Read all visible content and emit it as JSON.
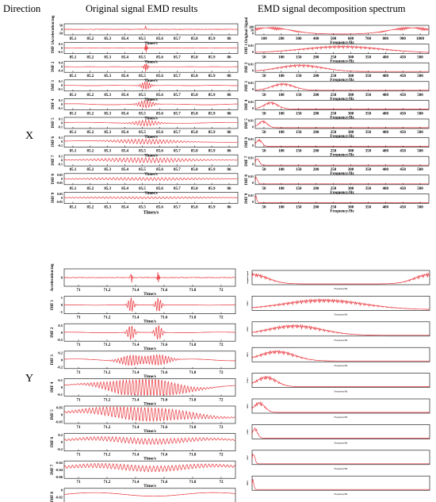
{
  "headers": {
    "direction": "Direction",
    "emd_results": "Original signal EMD results",
    "spectrum": "EMD signal decomposition spectrum"
  },
  "directions": {
    "x": "X",
    "y": "Y"
  },
  "colors": {
    "signal": "#e8333a",
    "axis": "#000000",
    "text": "#000000"
  },
  "chart_data": [
    {
      "type": "line",
      "id": "x-time",
      "direction": "X",
      "xlabel": "Times/s",
      "x_ticks": [
        "85.1",
        "85.2",
        "85.3",
        "85.4",
        "85.5",
        "85.6",
        "85.7",
        "85.8",
        "85.9",
        "86"
      ],
      "xlim": [
        85.05,
        86.0
      ],
      "series": [
        {
          "name": "Acceleration/mg",
          "y_ticks": [
            "50",
            "0",
            "-50"
          ],
          "ylim": [
            -60,
            60
          ],
          "freqs": [
            0
          ],
          "burst_amp": 1.0,
          "burst_width": 0.004,
          "noise": 0.05
        },
        {
          "name": "IMF 1",
          "y_ticks": [
            "0.5",
            "0",
            "-0.5"
          ],
          "ylim": [
            -0.6,
            0.6
          ],
          "freqs": [
            250
          ],
          "burst_amp": 1.0,
          "burst_width": 0.008,
          "noise": 0.04
        },
        {
          "name": "IMF 2",
          "y_ticks": [
            "0.4",
            "0",
            "-0.4"
          ],
          "ylim": [
            -0.5,
            0.5
          ],
          "freqs": [
            140
          ],
          "burst_amp": 1.0,
          "burst_width": 0.012,
          "noise": 0.04
        },
        {
          "name": "IMF 3",
          "y_ticks": [
            "0.1",
            "0",
            "-0.1"
          ],
          "ylim": [
            -0.15,
            0.15
          ],
          "freqs": [
            70
          ],
          "burst_amp": 0.9,
          "burst_width": 0.03,
          "noise": 0.06
        },
        {
          "name": "IMF 4",
          "y_ticks": [
            "0.1",
            "0",
            "-0.1"
          ],
          "ylim": [
            -0.15,
            0.15
          ],
          "freqs": [
            38
          ],
          "burst_amp": 0.8,
          "burst_width": 0.05,
          "noise": 0.2
        },
        {
          "name": "IMF 5",
          "y_ticks": [
            "0.1",
            "0",
            "-0.1"
          ],
          "ylim": [
            -0.15,
            0.15
          ],
          "freqs": [
            20
          ],
          "burst_amp": 0.6,
          "burst_width": 0.08,
          "noise": 0.25
        },
        {
          "name": "IMF 6",
          "y_ticks": [
            "0.1",
            "0",
            "-0.1"
          ],
          "ylim": [
            -0.15,
            0.15
          ],
          "freqs": [
            9
          ],
          "burst_amp": 0.5,
          "burst_width": 0.2,
          "noise": 0.3
        },
        {
          "name": "IMF 7",
          "y_ticks": [
            "0.1",
            "0",
            "-0.1"
          ],
          "ylim": [
            -0.15,
            0.15
          ],
          "freqs": [
            4
          ],
          "burst_amp": 0.5,
          "burst_width": 0.3,
          "noise": 0.2
        },
        {
          "name": "IMF 8",
          "y_ticks": [
            "0.05",
            "0",
            "-0.05"
          ],
          "ylim": [
            -0.07,
            0.07
          ],
          "freqs": [
            2
          ],
          "burst_amp": 0.3,
          "burst_width": 0.4,
          "noise": 0.1
        },
        {
          "name": "IMF 9",
          "y_ticks": [
            "0.05",
            "0",
            "-0.05"
          ],
          "ylim": [
            -0.07,
            0.07
          ],
          "freqs": [
            0.8
          ],
          "burst_amp": 0.2,
          "burst_width": 0.5,
          "noise": 0.05
        }
      ]
    },
    {
      "type": "line",
      "id": "x-spectrum",
      "direction": "X",
      "xlabel": "Frequency/Hz",
      "x_ticks_main": [
        "100",
        "200",
        "300",
        "400",
        "500",
        "600",
        "700",
        "800",
        "900",
        "1000"
      ],
      "x_ticks": [
        "50",
        "100",
        "150",
        "200",
        "250",
        "300",
        "350",
        "400",
        "450",
        "500"
      ],
      "series": [
        {
          "name": "Original Signal",
          "y_ticks": [
            "100",
            "50",
            "0"
          ],
          "ylim": [
            0,
            120
          ],
          "peak_hz": [
            80,
            900
          ],
          "spread": 180
        },
        {
          "name": "IMF 1",
          "y_ticks": [
            "0.01",
            "0"
          ],
          "ylim": [
            0,
            0.012
          ],
          "peak_hz": [
            250
          ],
          "spread": 160
        },
        {
          "name": "IMF 2",
          "y_ticks": [
            "0.01",
            "0"
          ],
          "ylim": [
            0,
            0.012
          ],
          "peak_hz": [
            130
          ],
          "spread": 90
        },
        {
          "name": "IMF 3",
          "y_ticks": [
            "0.01",
            "0"
          ],
          "ylim": [
            0,
            0.012
          ],
          "peak_hz": [
            80
          ],
          "spread": 45
        },
        {
          "name": "IMF 4",
          "y_ticks": [
            "0.01",
            "0"
          ],
          "ylim": [
            0,
            0.012
          ],
          "peak_hz": [
            45
          ],
          "spread": 28
        },
        {
          "name": "IMF 5",
          "y_ticks": [
            "0.01",
            "0"
          ],
          "ylim": [
            0,
            0.012
          ],
          "peak_hz": [
            22
          ],
          "spread": 18
        },
        {
          "name": "IMF 6",
          "y_ticks": [
            "0.01",
            "0"
          ],
          "ylim": [
            0,
            0.012
          ],
          "peak_hz": [
            11
          ],
          "spread": 12
        },
        {
          "name": "IMF 7",
          "y_ticks": [
            "0.01",
            "0"
          ],
          "ylim": [
            0,
            0.012
          ],
          "peak_hz": [
            6
          ],
          "spread": 8
        },
        {
          "name": "IMF 8",
          "y_ticks": [
            "0.01",
            "0"
          ],
          "ylim": [
            0,
            0.012
          ],
          "peak_hz": [
            3
          ],
          "spread": 5
        },
        {
          "name": "IMF 9",
          "y_ticks": [
            "0.01",
            "0"
          ],
          "ylim": [
            0,
            0.012
          ],
          "peak_hz": [
            1.5
          ],
          "spread": 4
        }
      ]
    },
    {
      "type": "line",
      "id": "y-time",
      "direction": "Y",
      "xlabel": "Time/s",
      "x_ticks": [
        "71",
        "71.2",
        "71.4",
        "71.6",
        "71.8",
        "72"
      ],
      "xlim": [
        71.0,
        72.0
      ],
      "series": [
        {
          "name": "Acceleration/mg",
          "y_ticks": [
            "0"
          ],
          "ylim": [
            -1,
            1
          ],
          "freqs": [
            0
          ],
          "burst_amp": 1.0,
          "burst_width": 0.006,
          "noise": 0.04
        },
        {
          "name": "IMF 1",
          "y_ticks": [
            "1",
            "0",
            "-1"
          ],
          "ylim": [
            -1.3,
            1.3
          ],
          "freqs": [
            60
          ],
          "burst_amp": 1.0,
          "burst_width": 0.02,
          "noise": 0.03
        },
        {
          "name": "IMF 2",
          "y_ticks": [
            "0.5",
            "0",
            "-0.5"
          ],
          "ylim": [
            -0.7,
            0.7
          ],
          "freqs": [
            45
          ],
          "burst_amp": 1.0,
          "burst_width": 0.025,
          "noise": 0.08
        },
        {
          "name": "IMF 3",
          "y_ticks": [
            "0.2",
            "0",
            "-0.2"
          ],
          "ylim": [
            -0.3,
            0.3
          ],
          "freqs": [
            30
          ],
          "burst_amp": 0.7,
          "burst_width": 0.08,
          "noise": 0.25
        },
        {
          "name": "IMF 4",
          "y_ticks": [
            "0.1",
            "0",
            "-0.1"
          ],
          "ylim": [
            -0.14,
            0.14
          ],
          "freqs": [
            18
          ],
          "burst_amp": 0.8,
          "burst_width": 0.2,
          "noise": 0.8
        },
        {
          "name": "IMF 5",
          "y_ticks": [
            "0.05",
            "0",
            "-0.05"
          ],
          "ylim": [
            -0.07,
            0.07
          ],
          "freqs": [
            9
          ],
          "burst_amp": 0.5,
          "burst_width": 0.3,
          "noise": 0.9
        },
        {
          "name": "IMF 6",
          "y_ticks": [
            "0.2",
            "0",
            "-0.2"
          ],
          "ylim": [
            -0.3,
            0.3
          ],
          "freqs": [
            3
          ],
          "burst_amp": 0.2,
          "burst_width": 0.4,
          "noise": 0.8
        },
        {
          "name": "IMF 7",
          "y_ticks": [
            "-0.02",
            "-0.04",
            "-0.06"
          ],
          "ylim": [
            -0.07,
            -0.01
          ],
          "freqs": [
            1.5
          ],
          "burst_amp": 0.2,
          "burst_width": 0.5,
          "noise": 0.9
        },
        {
          "name": "IMF 8",
          "y_ticks": [
            "0",
            "-0.02",
            "-0.04"
          ],
          "ylim": [
            -0.05,
            0.005
          ],
          "freqs": [
            0.3
          ],
          "burst_amp": 0.0,
          "burst_width": 0.5,
          "noise": 1.0
        }
      ]
    },
    {
      "type": "line",
      "id": "y-spectrum",
      "direction": "Y",
      "xlabel": "Frequency/Hz",
      "series": [
        {
          "name": "Original Signal",
          "peak_hz": [
            2,
            500
          ],
          "spread": 60
        },
        {
          "name": "IMF1",
          "peak_hz": [
            200
          ],
          "spread": 160
        },
        {
          "name": "IMF2",
          "peak_hz": [
            120
          ],
          "spread": 110
        },
        {
          "name": "IMF3",
          "peak_hz": [
            70
          ],
          "spread": 70
        },
        {
          "name": "IMF4",
          "peak_hz": [
            40
          ],
          "spread": 40
        },
        {
          "name": "IMF5",
          "peak_hz": [
            20
          ],
          "spread": 22
        },
        {
          "name": "IMF6",
          "peak_hz": [
            8
          ],
          "spread": 10
        },
        {
          "name": "IMF7",
          "peak_hz": [
            4
          ],
          "spread": 6
        },
        {
          "name": "IMF8",
          "peak_hz": [
            2
          ],
          "spread": 4
        }
      ]
    }
  ]
}
